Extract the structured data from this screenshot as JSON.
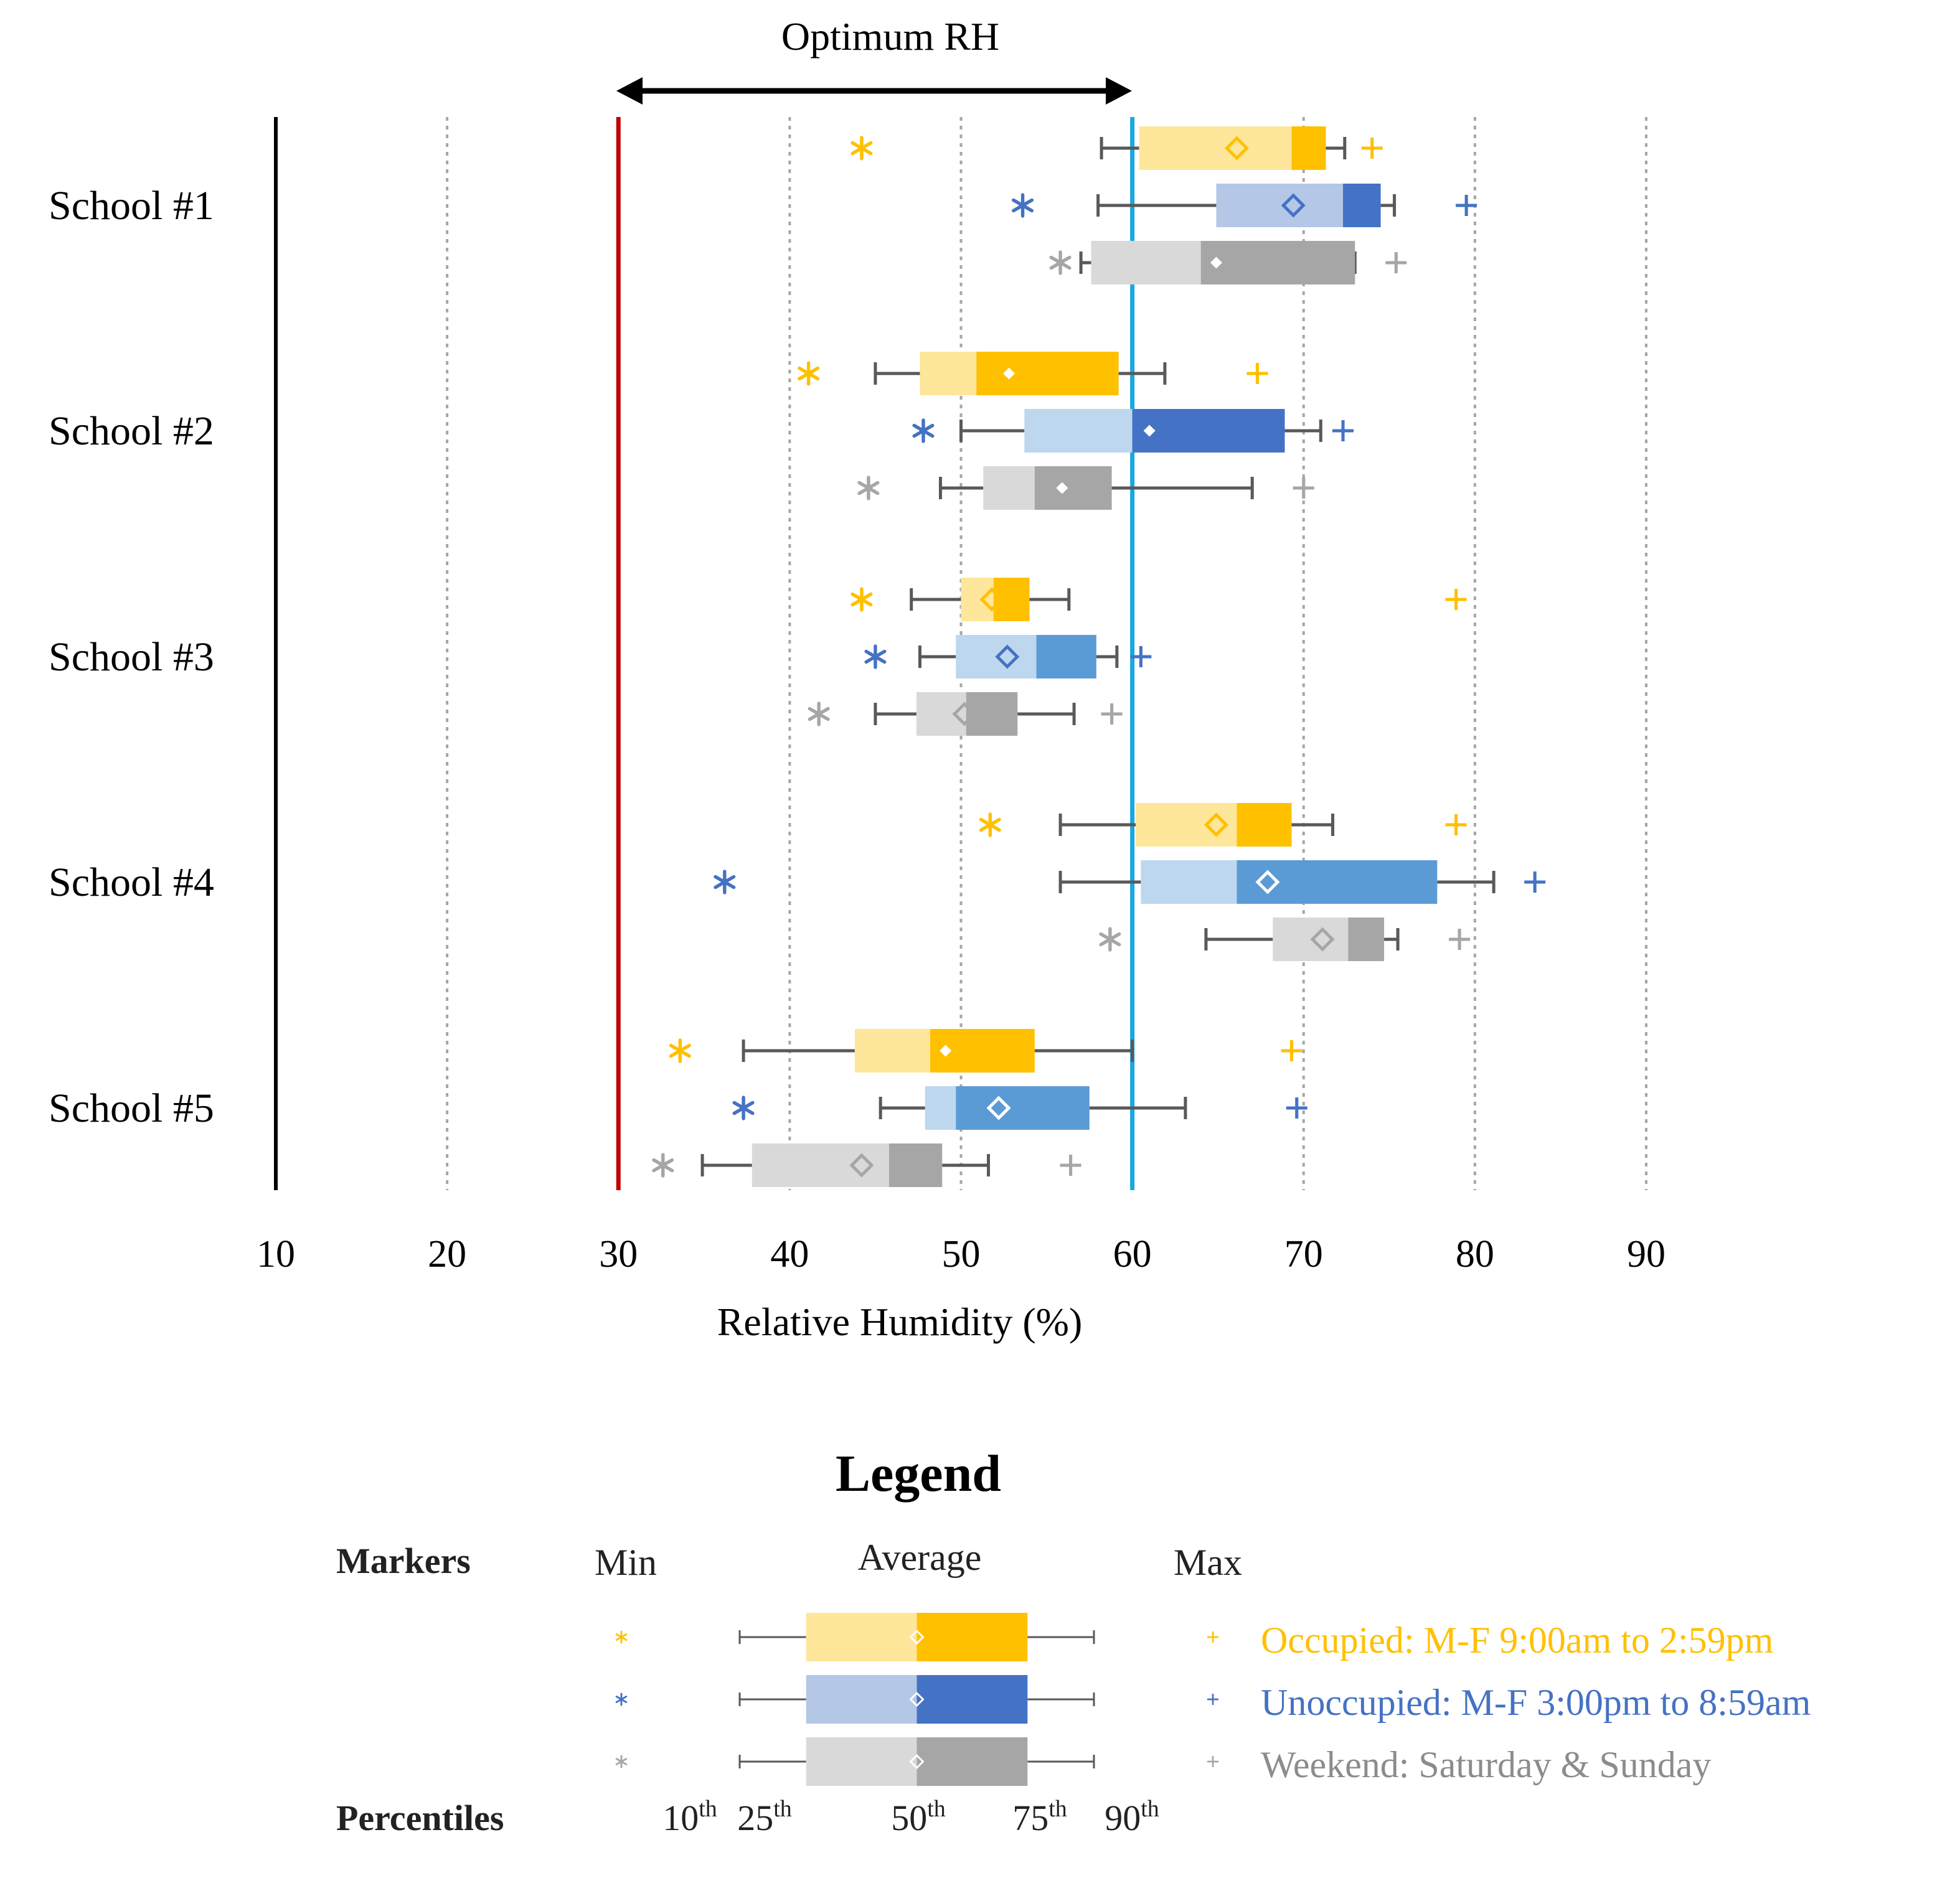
{
  "chart_data": {
    "type": "box",
    "orientation": "horizontal",
    "title": "Optimum RH",
    "xlabel": "Relative Humidity (%)",
    "ylabel": "",
    "xlim": [
      10,
      90
    ],
    "xticks": [
      10,
      20,
      30,
      40,
      50,
      60,
      70,
      80,
      90
    ],
    "grid": "vertical dotted",
    "optimum_range": [
      30,
      60
    ],
    "reference_lines": [
      {
        "value": 30,
        "color": "#c00000"
      },
      {
        "value": 60,
        "color": "#1aa7e0"
      }
    ],
    "categories": [
      "School #1",
      "School #2",
      "School #3",
      "School #4",
      "School #5"
    ],
    "series": [
      {
        "name": "Occupied: M-F 9:00am to 2:59pm",
        "light": "#fee69a",
        "dark": "#ffc000",
        "marker": "#ffc000",
        "data": [
          {
            "min": 44.2,
            "p10": 58.2,
            "p25": 60.4,
            "p50": 69.3,
            "p75": 71.3,
            "p90": 72.4,
            "max": 74.0,
            "avg": 66.1
          },
          {
            "min": 41.1,
            "p10": 45.0,
            "p25": 47.6,
            "p50": 50.9,
            "p75": 59.2,
            "p90": 61.9,
            "max": 67.3,
            "avg": 52.8
          },
          {
            "min": 44.2,
            "p10": 47.1,
            "p25": 50.0,
            "p50": 51.9,
            "p75": 54.0,
            "p90": 56.3,
            "max": 78.9,
            "avg": 51.8
          },
          {
            "min": 51.7,
            "p10": 55.8,
            "p25": 60.2,
            "p50": 66.1,
            "p75": 69.3,
            "p90": 71.7,
            "max": 78.9,
            "avg": 64.9
          },
          {
            "min": 33.6,
            "p10": 37.3,
            "p25": 43.8,
            "p50": 48.2,
            "p75": 54.3,
            "p90": 60.0,
            "max": 69.3,
            "avg": 49.1
          }
        ]
      },
      {
        "name": "Unoccupied: M-F 3:00pm to 8:59am",
        "light_blue": "#b4c7e7",
        "dark_blue": "#4472c4",
        "marker": "#4472c4",
        "data": [
          {
            "min": 53.6,
            "p10": 58.0,
            "p25": 64.9,
            "p50": 72.3,
            "p75": 74.5,
            "p90": 75.3,
            "max": 79.5,
            "avg": 69.4,
            "light": "#b4c7e7",
            "dark": "#4472c4"
          },
          {
            "min": 47.8,
            "p10": 50.0,
            "p25": 53.7,
            "p50": 60.0,
            "p75": 68.9,
            "p90": 71.0,
            "max": 72.3,
            "avg": 61.0,
            "light": "#bdd7ee",
            "dark": "#4472c4"
          },
          {
            "min": 45.0,
            "p10": 47.6,
            "p25": 49.7,
            "p50": 54.4,
            "p75": 57.9,
            "p90": 59.1,
            "max": 60.5,
            "avg": 52.7,
            "light": "#bdd7ee",
            "dark": "#5b9bd5"
          },
          {
            "min": 36.2,
            "p10": 55.8,
            "p25": 60.5,
            "p50": 66.1,
            "p75": 77.8,
            "p90": 81.1,
            "max": 83.5,
            "avg": 67.9,
            "light": "#bdd7ee",
            "dark": "#5b9bd5"
          },
          {
            "min": 37.3,
            "p10": 45.3,
            "p25": 47.9,
            "p50": 49.7,
            "p75": 57.5,
            "p90": 63.1,
            "max": 69.6,
            "avg": 52.2,
            "light": "#bdd7ee",
            "dark": "#5b9bd5"
          }
        ]
      },
      {
        "name": "Weekend: Saturday & Sunday",
        "light": "#d9d9d9",
        "dark": "#a6a6a6",
        "marker": "#a6a6a6",
        "data": [
          {
            "min": 55.8,
            "p10": 57.0,
            "p25": 57.6,
            "p50": 64.0,
            "p75": 73.0,
            "p90": 73.0,
            "max": 75.4,
            "avg": 64.9
          },
          {
            "min": 44.6,
            "p10": 48.8,
            "p25": 51.3,
            "p50": 54.3,
            "p75": 58.8,
            "p90": 67.0,
            "max": 70.0,
            "avg": 55.9
          },
          {
            "min": 41.7,
            "p10": 45.0,
            "p25": 47.4,
            "p50": 50.3,
            "p75": 53.3,
            "p90": 56.6,
            "max": 58.8,
            "avg": 50.2
          },
          {
            "min": 58.7,
            "p10": 64.3,
            "p25": 68.2,
            "p50": 72.6,
            "p75": 74.7,
            "p90": 75.5,
            "max": 79.1,
            "avg": 71.1
          },
          {
            "min": 32.6,
            "p10": 34.9,
            "p25": 37.8,
            "p50": 45.8,
            "p75": 48.9,
            "p90": 51.6,
            "max": 56.4,
            "avg": 44.2
          }
        ]
      }
    ]
  },
  "legend": {
    "title": "Legend",
    "markers_heading": "Markers",
    "min_label": "Min",
    "average_label": "Average",
    "max_label": "Max",
    "percentiles_heading": "Percentiles",
    "percentiles": [
      {
        "num": "10",
        "suffix": "th"
      },
      {
        "num": "25",
        "suffix": "th"
      },
      {
        "num": "50",
        "suffix": "th"
      },
      {
        "num": "75",
        "suffix": "th"
      },
      {
        "num": "90",
        "suffix": "th"
      }
    ],
    "series_labels": [
      {
        "text": "Occupied: M-F 9:00am to 2:59pm",
        "color": "#ffc000"
      },
      {
        "text": "Unoccupied: M-F 3:00pm to 8:59am",
        "color": "#4472c4"
      },
      {
        "text": "Weekend: Saturday & Sunday",
        "color": "#8c8c8c"
      }
    ]
  }
}
